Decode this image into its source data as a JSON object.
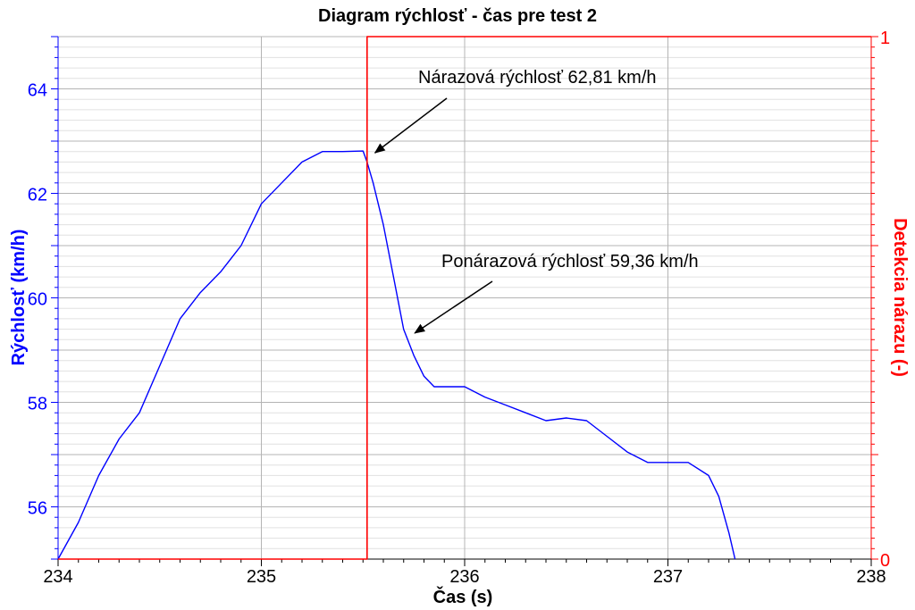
{
  "chart_data": {
    "type": "line",
    "title": "Diagram rýchlosť - čas pre test 2",
    "xlabel": "Čas (s)",
    "ylabel": "Rýchlosť (km/h)",
    "y2label": "Detekcia nárazu (-)",
    "xlim": [
      234,
      238
    ],
    "ylim": [
      55,
      65
    ],
    "y2lim": [
      0,
      1
    ],
    "x_ticks": [
      "234",
      "235",
      "236",
      "237",
      "238"
    ],
    "y_ticks": [
      "56",
      "58",
      "60",
      "62",
      "64"
    ],
    "y2_ticks": [
      "0",
      "1"
    ],
    "grid": true,
    "colors": {
      "speed": "#0000ff",
      "detection": "#ff0000",
      "grid": "#c8c8c8",
      "axis": "#000000"
    },
    "series": [
      {
        "axis": "left",
        "x": [
          234.0,
          234.1,
          234.2,
          234.3,
          234.4,
          234.5,
          234.6,
          234.7,
          234.8,
          234.9,
          235.0,
          235.1,
          235.2,
          235.3,
          235.4,
          235.5,
          235.52,
          235.55,
          235.6,
          235.65,
          235.7,
          235.75,
          235.8,
          235.85,
          235.9,
          236.0,
          236.1,
          236.2,
          236.3,
          236.4,
          236.5,
          236.6,
          236.7,
          236.8,
          236.9,
          237.0,
          237.1,
          237.2,
          237.25,
          237.3,
          237.33
        ],
        "values": [
          55.0,
          55.7,
          56.6,
          57.3,
          57.8,
          58.7,
          59.6,
          60.1,
          60.5,
          61.0,
          61.8,
          62.2,
          62.6,
          62.8,
          62.8,
          62.81,
          62.6,
          62.2,
          61.4,
          60.4,
          59.4,
          58.9,
          58.5,
          58.3,
          58.3,
          58.3,
          58.1,
          57.95,
          57.8,
          57.65,
          57.7,
          57.65,
          57.35,
          57.05,
          56.85,
          56.85,
          56.85,
          56.6,
          56.2,
          55.5,
          55.0
        ]
      },
      {
        "axis": "right",
        "x": [
          234.0,
          235.52,
          235.52,
          238.0
        ],
        "values": [
          0,
          0,
          1,
          1
        ]
      }
    ],
    "annotations": [
      {
        "text": "Nárazová rýchlosť 62,81 km/h",
        "x": 235.55,
        "y": 62.81
      },
      {
        "text": "Ponárazová rýchlosť 59,36 km/h",
        "x": 235.75,
        "y": 59.36
      }
    ]
  }
}
